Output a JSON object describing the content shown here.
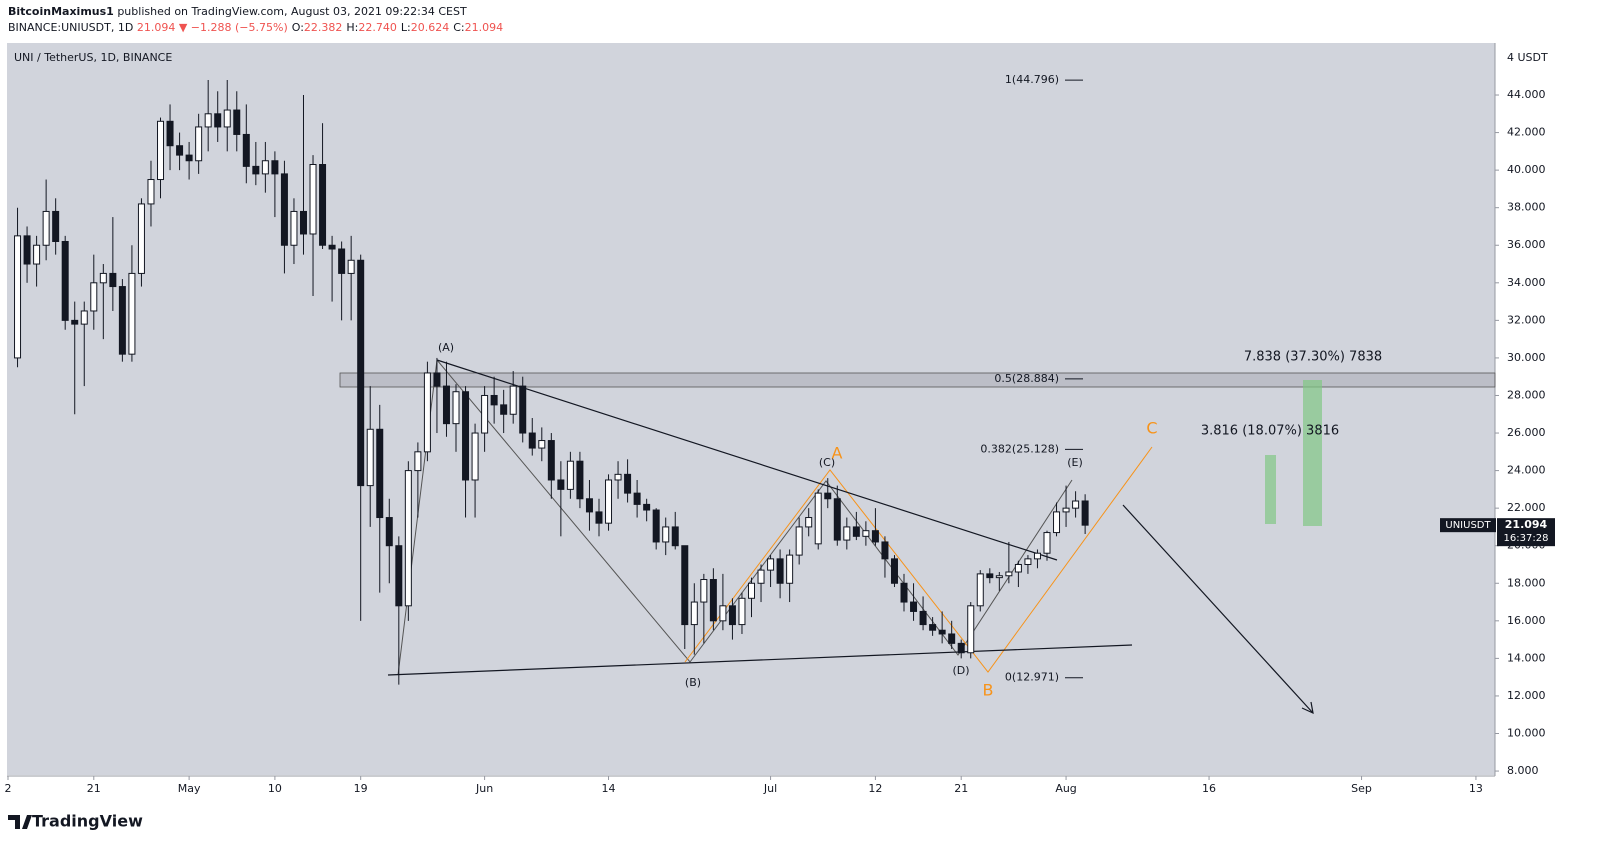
{
  "header": {
    "author": "BitcoinMaximus1",
    "published": "published on TradingView.com, August 03, 2021 09:22:34 CEST",
    "symbol": "BINANCE:UNIUSDT, 1D",
    "change": "▼ −1.288 (−5.75%)",
    "ohlc": [
      {
        "label": "O:",
        "value": "22.382"
      },
      {
        "label": "H:",
        "value": "22.740"
      },
      {
        "label": "L:",
        "value": "20.624"
      },
      {
        "label": "C:",
        "value": "21.094"
      }
    ]
  },
  "footer": {
    "brand": "TradingView"
  },
  "chart_data": {
    "type": "candlestick",
    "title": "UNI / TetherUS, 1D, BINANCE",
    "y_unit": "4 USDT",
    "up_color": "#ffffff",
    "down_color": "#131722",
    "x": [
      "Apr 13",
      "Apr 14",
      "Apr 15",
      "Apr 16",
      "Apr 17",
      "Apr 18",
      "Apr 19",
      "Apr 20",
      "Apr 21",
      "Apr 22",
      "Apr 23",
      "Apr 24",
      "Apr 25",
      "Apr 26",
      "Apr 27",
      "Apr 28",
      "Apr 29",
      "Apr 30",
      "May 1",
      "May 2",
      "May 3",
      "May 4",
      "May 5",
      "May 6",
      "May 7",
      "May 8",
      "May 9",
      "May 10",
      "May 11",
      "May 12",
      "May 13",
      "May 14",
      "May 15",
      "May 16",
      "May 17",
      "May 18",
      "May 19",
      "May 20",
      "May 21",
      "May 22",
      "May 23",
      "May 24",
      "May 25",
      "May 26",
      "May 27",
      "May 28",
      "May 29",
      "May 30",
      "May 31",
      "Jun 1",
      "Jun 2",
      "Jun 3",
      "Jun 4",
      "Jun 5",
      "Jun 6",
      "Jun 7",
      "Jun 8",
      "Jun 9",
      "Jun 10",
      "Jun 11",
      "Jun 12",
      "Jun 13",
      "Jun 14",
      "Jun 15",
      "Jun 16",
      "Jun 17",
      "Jun 18",
      "Jun 19",
      "Jun 20",
      "Jun 21",
      "Jun 22",
      "Jun 23",
      "Jun 24",
      "Jun 25",
      "Jun 26",
      "Jun 27",
      "Jun 28",
      "Jun 29",
      "Jun 30",
      "Jul 1",
      "Jul 2",
      "Jul 3",
      "Jul 4",
      "Jul 5",
      "Jul 6",
      "Jul 7",
      "Jul 8",
      "Jul 9",
      "Jul 10",
      "Jul 11",
      "Jul 12",
      "Jul 13",
      "Jul 14",
      "Jul 15",
      "Jul 16",
      "Jul 17",
      "Jul 18",
      "Jul 19",
      "Jul 20",
      "Jul 21",
      "Jul 22",
      "Jul 23",
      "Jul 24",
      "Jul 25",
      "Jul 26",
      "Jul 27",
      "Jul 28",
      "Jul 29",
      "Jul 30",
      "Jul 31",
      "Aug 1",
      "Aug 2",
      "Aug 3"
    ],
    "open": [
      30.0,
      36.5,
      35.0,
      36.0,
      37.8,
      36.2,
      32.0,
      31.8,
      32.5,
      34.0,
      34.5,
      33.8,
      30.2,
      34.5,
      38.2,
      39.5,
      42.6,
      41.3,
      40.8,
      40.5,
      42.3,
      43.0,
      42.3,
      43.2,
      41.9,
      40.2,
      39.8,
      40.5,
      39.8,
      36.0,
      37.8,
      36.6,
      40.3,
      36.0,
      35.8,
      34.5,
      35.2,
      23.2,
      26.2,
      21.5,
      20.0,
      16.8,
      24.0,
      25.0,
      29.2,
      28.5,
      26.5,
      28.2,
      23.5,
      26.0,
      28.0,
      27.5,
      27.0,
      28.5,
      26.0,
      25.2,
      25.6,
      23.5,
      23.0,
      24.5,
      22.5,
      21.8,
      21.2,
      23.5,
      23.8,
      22.8,
      22.2,
      21.9,
      20.2,
      21.0,
      20.0,
      15.8,
      17.0,
      18.2,
      16.0,
      16.8,
      15.8,
      17.2,
      18.0,
      18.7,
      19.3,
      18.0,
      19.5,
      21.0,
      20.1,
      22.8,
      22.5,
      20.3,
      21.0,
      20.5,
      20.8,
      20.2,
      19.3,
      18.0,
      17.0,
      16.5,
      15.8,
      15.5,
      15.3,
      14.8,
      14.3,
      16.8,
      18.5,
      18.3,
      18.4,
      18.6,
      19.0,
      19.3,
      19.6,
      20.7,
      21.8,
      22.0,
      22.382
    ],
    "high": [
      38.0,
      37.0,
      36.5,
      39.5,
      38.5,
      36.5,
      33.0,
      33.0,
      35.5,
      35.0,
      37.5,
      34.2,
      36.0,
      38.5,
      40.5,
      42.8,
      43.5,
      42.0,
      41.5,
      43.0,
      44.8,
      44.2,
      44.8,
      44.2,
      43.5,
      41.5,
      41.5,
      41.0,
      40.5,
      38.5,
      44.0,
      40.8,
      42.5,
      36.5,
      36.2,
      36.5,
      35.5,
      28.5,
      27.5,
      22.5,
      20.5,
      24.5,
      25.5,
      29.8,
      30.0,
      29.8,
      28.6,
      28.5,
      26.5,
      28.5,
      29.0,
      28.3,
      29.3,
      29.0,
      26.8,
      26.3,
      26.0,
      24.5,
      25.0,
      25.0,
      23.5,
      22.5,
      23.8,
      24.5,
      24.6,
      23.5,
      22.5,
      22.0,
      21.5,
      21.8,
      20.0,
      18.0,
      18.5,
      18.8,
      18.5,
      17.2,
      17.5,
      18.3,
      19.0,
      19.5,
      19.8,
      19.8,
      21.5,
      22.0,
      23.0,
      23.6,
      23.2,
      21.5,
      21.8,
      21.3,
      22.0,
      20.5,
      19.5,
      18.5,
      18.0,
      17.3,
      16.2,
      16.5,
      16.0,
      15.0,
      17.0,
      18.7,
      18.8,
      18.6,
      20.2,
      19.2,
      19.5,
      19.8,
      20.8,
      22.3,
      23.2,
      22.9,
      22.74
    ],
    "low": [
      29.5,
      34.0,
      33.8,
      35.2,
      35.5,
      31.5,
      27.0,
      28.5,
      31.5,
      31.0,
      32.5,
      29.8,
      29.8,
      33.8,
      37.0,
      38.5,
      40.0,
      40.0,
      39.5,
      39.8,
      41.0,
      41.5,
      41.0,
      41.0,
      39.3,
      39.2,
      38.8,
      37.5,
      34.5,
      35.0,
      35.5,
      33.3,
      35.8,
      33.0,
      32.0,
      32.0,
      16.0,
      21.0,
      17.5,
      18.0,
      12.6,
      16.0,
      21.5,
      24.5,
      26.0,
      25.8,
      25.0,
      21.5,
      21.5,
      25.0,
      26.5,
      26.0,
      26.5,
      25.5,
      24.8,
      24.5,
      22.5,
      20.5,
      22.5,
      22.0,
      20.8,
      20.5,
      20.8,
      22.5,
      22.3,
      21.5,
      21.3,
      19.8,
      19.5,
      19.8,
      14.5,
      14.2,
      14.8,
      15.5,
      15.5,
      15.0,
      15.3,
      16.2,
      17.0,
      17.8,
      17.2,
      17.0,
      19.0,
      20.5,
      19.8,
      22.0,
      20.0,
      19.8,
      20.3,
      20.0,
      20.0,
      18.3,
      17.8,
      16.5,
      16.0,
      15.5,
      15.2,
      14.8,
      14.5,
      14.0,
      14.0,
      16.5,
      18.0,
      17.6,
      18.0,
      17.8,
      18.5,
      18.8,
      19.2,
      20.5,
      21.0,
      21.5,
      20.624
    ],
    "close": [
      36.5,
      35.0,
      36.0,
      37.8,
      36.2,
      32.0,
      31.8,
      32.5,
      34.0,
      34.5,
      33.8,
      30.2,
      34.5,
      38.2,
      39.5,
      42.6,
      41.3,
      40.8,
      40.5,
      42.3,
      43.0,
      42.3,
      43.2,
      41.9,
      40.2,
      39.8,
      40.5,
      39.8,
      36.0,
      37.8,
      36.6,
      40.3,
      36.0,
      35.8,
      34.5,
      35.2,
      23.2,
      26.2,
      21.5,
      20.0,
      16.8,
      24.0,
      25.0,
      29.2,
      28.5,
      26.5,
      28.2,
      23.5,
      26.0,
      28.0,
      27.5,
      27.0,
      28.5,
      26.0,
      25.2,
      25.6,
      23.5,
      23.0,
      24.5,
      22.5,
      21.8,
      21.2,
      23.5,
      23.8,
      22.8,
      22.2,
      21.9,
      20.2,
      21.0,
      20.0,
      15.8,
      17.0,
      18.2,
      16.0,
      16.8,
      15.8,
      17.2,
      18.0,
      18.7,
      19.3,
      18.0,
      19.5,
      21.0,
      21.5,
      22.8,
      22.5,
      20.3,
      21.0,
      20.5,
      20.8,
      20.2,
      19.3,
      18.0,
      17.0,
      16.5,
      15.8,
      15.5,
      15.3,
      14.8,
      14.3,
      16.8,
      18.5,
      18.3,
      18.4,
      18.6,
      19.0,
      19.3,
      19.6,
      20.7,
      21.8,
      22.0,
      22.38,
      21.094
    ],
    "xlim": [
      "Apr 12",
      "Sep 15"
    ],
    "xticks": [
      {
        "value": "Apr 12",
        "label": "2"
      },
      {
        "value": "Apr 21",
        "label": "21"
      },
      {
        "value": "May 1",
        "label": "May"
      },
      {
        "value": "May 10",
        "label": "10"
      },
      {
        "value": "May 19",
        "label": "19"
      },
      {
        "value": "Jun 1",
        "label": "Jun"
      },
      {
        "value": "Jun 14",
        "label": "14"
      },
      {
        "value": "Jul 1",
        "label": "Jul"
      },
      {
        "value": "Jul 12",
        "label": "12"
      },
      {
        "value": "Jul 21",
        "label": "21"
      },
      {
        "value": "Aug 1",
        "label": "Aug"
      },
      {
        "value": "Aug 16",
        "label": "16"
      },
      {
        "value": "Sep 1",
        "label": "Sep"
      },
      {
        "value": "Sep 13",
        "label": "13"
      }
    ],
    "ylim": [
      7.79,
      46.77
    ],
    "yticks": [
      {
        "value": 8,
        "label": "8.000"
      },
      {
        "value": 10,
        "label": "10.000"
      },
      {
        "value": 12,
        "label": "12.000"
      },
      {
        "value": 14,
        "label": "14.000"
      },
      {
        "value": 16,
        "label": "16.000"
      },
      {
        "value": 18,
        "label": "18.000"
      },
      {
        "value": 20,
        "label": "20.000"
      },
      {
        "value": 22,
        "label": "22.000"
      },
      {
        "value": 24,
        "label": "24.000"
      },
      {
        "value": 26,
        "label": "26.000"
      },
      {
        "value": 28,
        "label": "28.000"
      },
      {
        "value": 30,
        "label": "30.000"
      },
      {
        "value": 32,
        "label": "32.000"
      },
      {
        "value": 34,
        "label": "34.000"
      },
      {
        "value": 36,
        "label": "36.000"
      },
      {
        "value": 38,
        "label": "38.000"
      },
      {
        "value": 40,
        "label": "40.000"
      },
      {
        "value": 42,
        "label": "42.000"
      },
      {
        "value": 44,
        "label": "44.000"
      }
    ],
    "fib_levels": [
      {
        "value": 44.796,
        "label": "1(44.796)"
      },
      {
        "value": 28.884,
        "label": "0.5(28.884)"
      },
      {
        "value": 25.128,
        "label": "0.382(25.128)"
      },
      {
        "value": 12.971,
        "label": "0(12.971)"
      }
    ],
    "price_tag": {
      "symbol": "UNIUSDT",
      "countdown": "16:37:28"
    },
    "annotations": {
      "waves": [
        "(A)",
        "(B)",
        "(C)",
        "(D)",
        "(E)"
      ],
      "abc": [
        "A",
        "B",
        "C"
      ],
      "measures": [
        "7.838 (37.30%) 7838",
        "3.816 (18.07%) 3816"
      ]
    }
  }
}
